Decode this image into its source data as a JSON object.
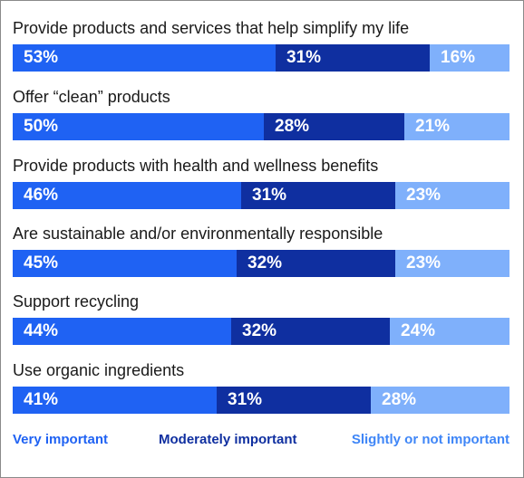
{
  "chart_data": {
    "type": "bar",
    "orientation": "horizontal",
    "stacked": true,
    "categories": [
      "Provide products and services that help simplify my life",
      "Offer “clean” products",
      "Provide products with health and wellness benefits",
      "Are sustainable and/or environmentally responsible",
      "Support recycling",
      "Use organic ingredients"
    ],
    "series": [
      {
        "name": "Very important",
        "color": "#1f62f3",
        "values": [
          53,
          50,
          46,
          45,
          44,
          41
        ]
      },
      {
        "name": "Moderately important",
        "color": "#0f2fa0",
        "values": [
          31,
          28,
          31,
          32,
          32,
          31
        ]
      },
      {
        "name": "Slightly or not important",
        "color": "#7fb0fb",
        "values": [
          16,
          21,
          23,
          23,
          24,
          28
        ]
      }
    ],
    "value_suffix": "%",
    "legend_position": "bottom"
  }
}
